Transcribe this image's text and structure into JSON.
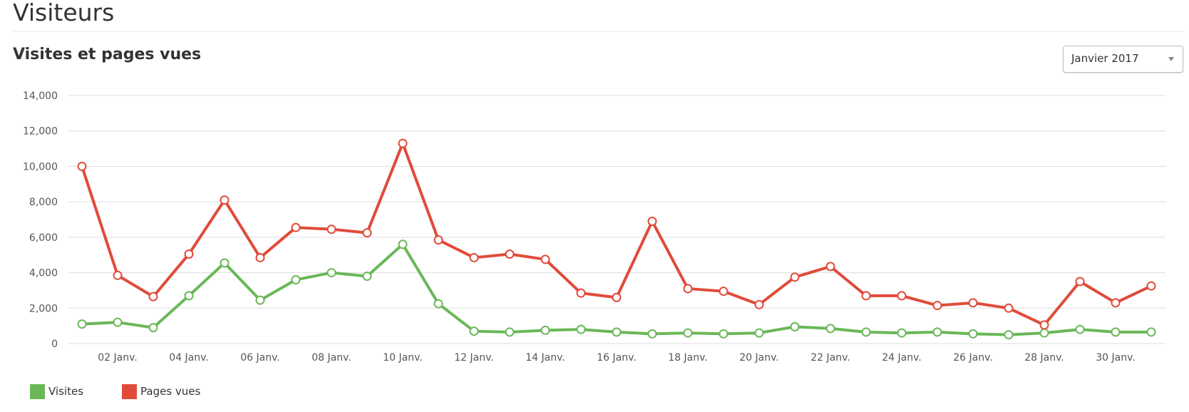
{
  "header": {
    "title": "Visiteurs"
  },
  "section": {
    "title": "Visites et pages vues"
  },
  "month_select": {
    "value": "Janvier 2017"
  },
  "colors": {
    "visites": "#6ab858",
    "pages_vues": "#e04b3a",
    "grid": "#dddddd"
  },
  "chart_data": {
    "type": "line",
    "title": "Visites et pages vues",
    "xlabel": "",
    "ylabel": "",
    "ylim": [
      0,
      14000
    ],
    "yticks": [
      "0",
      "2,000",
      "4,000",
      "6,000",
      "8,000",
      "10,000",
      "12,000",
      "14,000"
    ],
    "xticks": [
      "02 Janv.",
      "04 Janv.",
      "06 Janv.",
      "08 Janv.",
      "10 Janv.",
      "12 Janv.",
      "14 Janv.",
      "16 Janv.",
      "18 Janv.",
      "20 Janv.",
      "22 Janv.",
      "24 Janv.",
      "26 Janv.",
      "28 Janv.",
      "30 Janv."
    ],
    "x": [
      1,
      2,
      3,
      4,
      5,
      6,
      7,
      8,
      9,
      10,
      11,
      12,
      13,
      14,
      15,
      16,
      17,
      18,
      19,
      20,
      21,
      22,
      23,
      24,
      25,
      26,
      27,
      28,
      29,
      30,
      31
    ],
    "grid": true,
    "legend_position": "bottom-left",
    "series": [
      {
        "name": "Visites",
        "values": [
          1100,
          1200,
          900,
          2700,
          4550,
          2450,
          3600,
          4000,
          3800,
          5600,
          2250,
          700,
          650,
          750,
          800,
          650,
          550,
          600,
          550,
          600,
          950,
          850,
          650,
          600,
          650,
          550,
          500,
          600,
          800,
          650,
          650
        ]
      },
      {
        "name": "Pages vues",
        "values": [
          10000,
          3850,
          2650,
          5050,
          8100,
          4850,
          6550,
          6450,
          6250,
          11300,
          5850,
          4850,
          5050,
          4750,
          2850,
          2600,
          6900,
          3100,
          2950,
          2200,
          3750,
          4350,
          2700,
          2700,
          2150,
          2300,
          2000,
          1050,
          3500,
          2300,
          3250
        ]
      }
    ]
  },
  "legend": {
    "items": [
      {
        "label": "Visites"
      },
      {
        "label": "Pages vues"
      }
    ]
  }
}
